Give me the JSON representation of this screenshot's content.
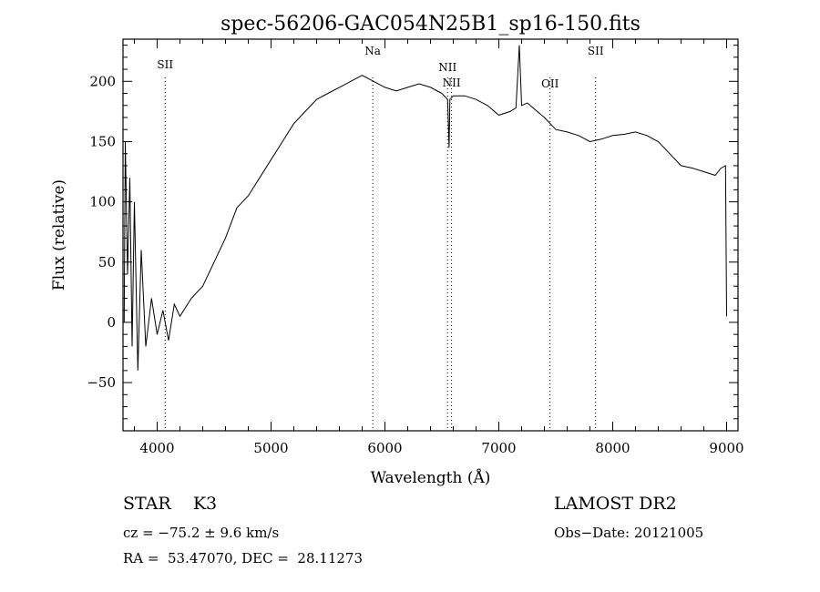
{
  "chart_data": {
    "type": "line",
    "title": "spec-56206-GAC054N25B1_sp16-150.fits",
    "xlabel": "Wavelength (Å)",
    "ylabel": "Flux (relative)",
    "xlim": [
      3700,
      9100
    ],
    "ylim": [
      -90,
      235
    ],
    "x_ticks": [
      4000,
      5000,
      6000,
      7000,
      8000,
      9000
    ],
    "y_ticks": [
      -50,
      0,
      50,
      100,
      150,
      200
    ],
    "grid": false,
    "line_color": "#000000",
    "series": [
      {
        "x": [
          3710,
          3720,
          3740,
          3760,
          3780,
          3800,
          3830,
          3860,
          3900,
          3950,
          4000,
          4050,
          4100,
          4150,
          4200,
          4300,
          4400,
          4500,
          4600,
          4700,
          4800,
          4900,
          5000,
          5100,
          5200,
          5300,
          5400,
          5500,
          5600,
          5700,
          5800,
          5900,
          6000,
          6100,
          6200,
          6300,
          6400,
          6500,
          6550,
          6563,
          6570,
          6600,
          6700,
          6800,
          6900,
          7000,
          7100,
          7150,
          7180,
          7200,
          7250,
          7300,
          7400,
          7500,
          7600,
          7700,
          7800,
          7900,
          8000,
          8100,
          8200,
          8300,
          8400,
          8500,
          8600,
          8700,
          8800,
          8900,
          8950,
          8990,
          9000
        ],
        "y": [
          0,
          150,
          40,
          120,
          -20,
          100,
          -40,
          60,
          -20,
          20,
          -10,
          10,
          -15,
          15,
          5,
          20,
          30,
          50,
          70,
          95,
          105,
          120,
          135,
          150,
          165,
          175,
          185,
          190,
          195,
          200,
          205,
          200,
          195,
          192,
          195,
          198,
          195,
          190,
          185,
          145,
          185,
          188,
          188,
          185,
          180,
          172,
          175,
          178,
          230,
          180,
          182,
          178,
          170,
          160,
          158,
          155,
          150,
          152,
          155,
          156,
          158,
          155,
          150,
          140,
          130,
          128,
          125,
          122,
          128,
          130,
          5
        ]
      }
    ],
    "lines": [
      {
        "label": "SII",
        "x": 4070
      },
      {
        "label": "Na",
        "x": 5893
      },
      {
        "label": "NII",
        "x": 6550
      },
      {
        "label": "NII",
        "x": 6585
      },
      {
        "label": "OII",
        "x": 7450
      },
      {
        "label": "SII",
        "x": 7850
      }
    ]
  },
  "info": {
    "class_label": "STAR    K3",
    "cz": "cz = −75.2 ± 9.6 km/s",
    "coords": "RA =  53.47070, DEC =  28.11273",
    "survey": "LAMOST DR2",
    "obs_date": "Obs−Date: 20121005"
  }
}
